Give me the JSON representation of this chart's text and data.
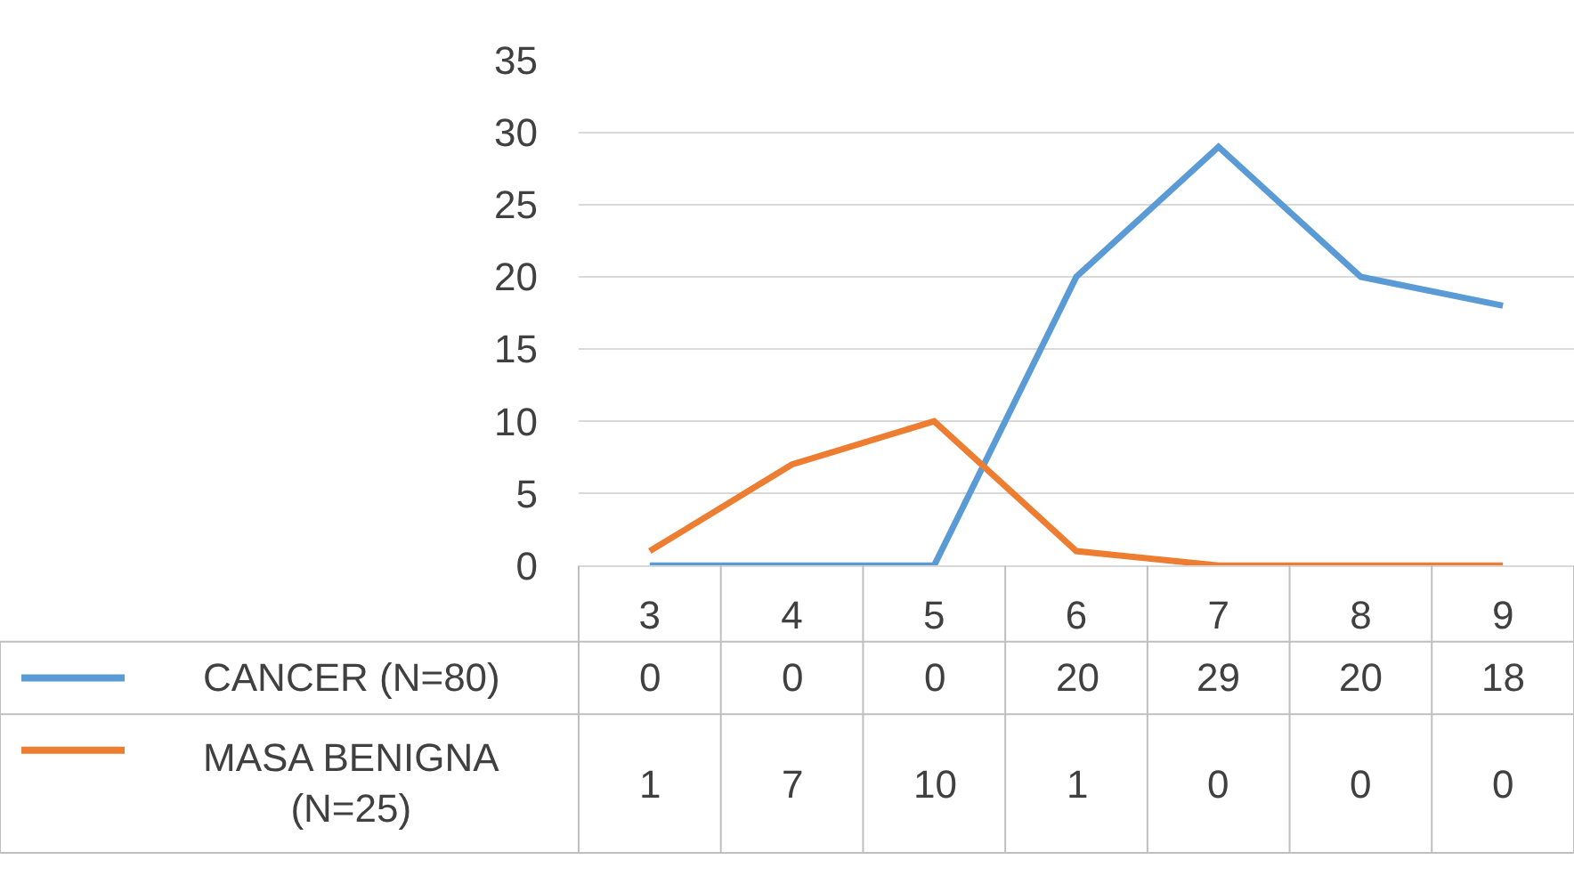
{
  "chart_data": {
    "type": "line",
    "categories": [
      "3",
      "4",
      "5",
      "6",
      "7",
      "8",
      "9"
    ],
    "series": [
      {
        "name": "CANCER (N=80)",
        "color": "#5b9bd5",
        "values": [
          0,
          0,
          0,
          20,
          29,
          20,
          18
        ]
      },
      {
        "name": "MASA BENIGNA (N=25)",
        "color": "#ed7d31",
        "values": [
          1,
          7,
          10,
          1,
          0,
          0,
          0
        ]
      }
    ],
    "ylim": [
      0,
      35
    ],
    "yticks": [
      0,
      5,
      10,
      15,
      20,
      25,
      30,
      35
    ],
    "grid": "y",
    "legend": "bottom",
    "data_labels": true,
    "marker": "none",
    "line_style": "solid"
  }
}
